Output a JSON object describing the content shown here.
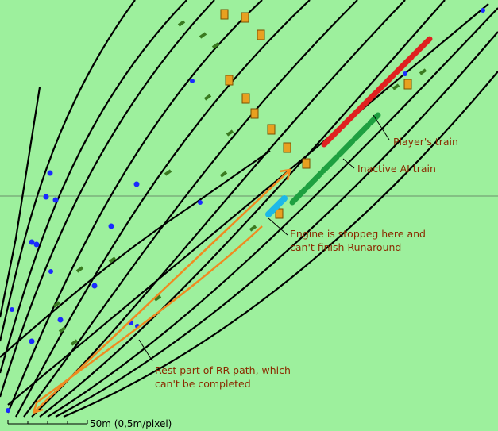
{
  "annotations": [
    {
      "lines": [
        "Player's train"
      ]
    },
    {
      "lines": [
        "Inactive AI train"
      ]
    },
    {
      "lines": [
        "Engine is stoppeg here and",
        "can't finish Runaround"
      ]
    },
    {
      "lines": [
        "Rest part of RR path, which",
        "can't be completed"
      ]
    }
  ],
  "scale": {
    "label": "50m (0,5m/pixel)"
  }
}
